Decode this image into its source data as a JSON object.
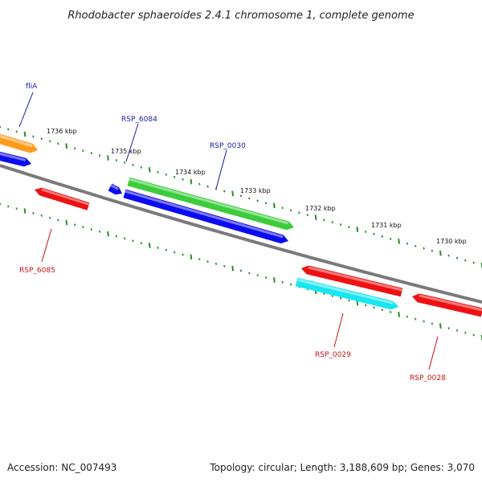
{
  "title": "Rhodobacter sphaeroides 2.4.1 chromosome 1, complete genome",
  "footer": {
    "accession": "Accession: NC_007493",
    "summary": "Topology: circular; Length: 3,188,609 bp; Genes: 3,070"
  },
  "colors": {
    "backbone": "#7a7a7a",
    "tick": "#2e8b2e",
    "forward_label": "#1a1aa6",
    "reverse_label": "#cc1111",
    "orange": "#ff9a1a",
    "blue": "#0b0bf0",
    "green": "#3ccc3c",
    "red": "#ee1111",
    "cyan": "#19e6f0"
  },
  "ticks": [
    {
      "label": "1736 kbp"
    },
    {
      "label": "1735 kbp"
    },
    {
      "label": "1734 kbp"
    },
    {
      "label": "1733 kbp"
    },
    {
      "label": "1732 kbp"
    },
    {
      "label": "1731 kbp"
    },
    {
      "label": "1730 kbp"
    }
  ],
  "genes": [
    {
      "id": "orange-gene",
      "color": "orange"
    },
    {
      "id": "blue-gene-left",
      "color": "blue"
    },
    {
      "id": "blue-gene-small",
      "color": "blue"
    },
    {
      "id": "green-gene",
      "color": "green"
    },
    {
      "id": "blue-gene-long",
      "color": "blue"
    },
    {
      "id": "red-gene-left",
      "color": "red"
    },
    {
      "id": "red-gene-mid",
      "color": "red"
    },
    {
      "id": "cyan-gene",
      "color": "cyan"
    },
    {
      "id": "red-gene-right",
      "color": "red"
    }
  ],
  "gene_labels": [
    {
      "text": "fliA",
      "strand": "forward"
    },
    {
      "text": "RSP_6084",
      "strand": "forward"
    },
    {
      "text": "RSP_0030",
      "strand": "forward"
    },
    {
      "text": "RSP_6085",
      "strand": "reverse"
    },
    {
      "text": "RSP_0029",
      "strand": "reverse"
    },
    {
      "text": "RSP_0028",
      "strand": "reverse"
    }
  ]
}
